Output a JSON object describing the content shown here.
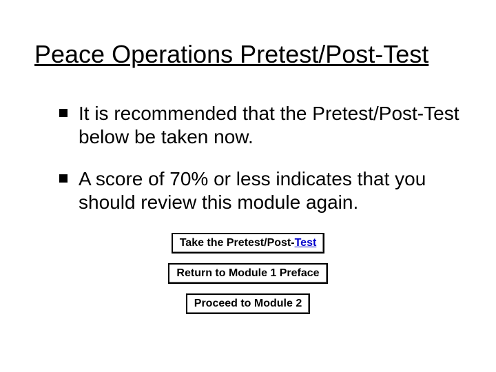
{
  "slide": {
    "title": "Peace Operations Pretest/Post-Test",
    "bullets": [
      "It is recommended that the Pretest/Post-Test below be taken now.",
      "A score of 70% or less indicates that you should review this module again."
    ],
    "buttons": {
      "take_test_prefix": "Take the Pretest/Post-",
      "take_test_link": "Test",
      "return_preface": "Return to Module 1 Preface",
      "proceed": "Proceed to Module 2"
    },
    "colors": {
      "background": "#ffffff",
      "text": "#000000",
      "link": "#0000cc",
      "button_border": "#000000"
    },
    "typography": {
      "title_fontsize": 36,
      "body_fontsize": 28,
      "button_fontsize": 16,
      "font_family": "Arial"
    }
  }
}
